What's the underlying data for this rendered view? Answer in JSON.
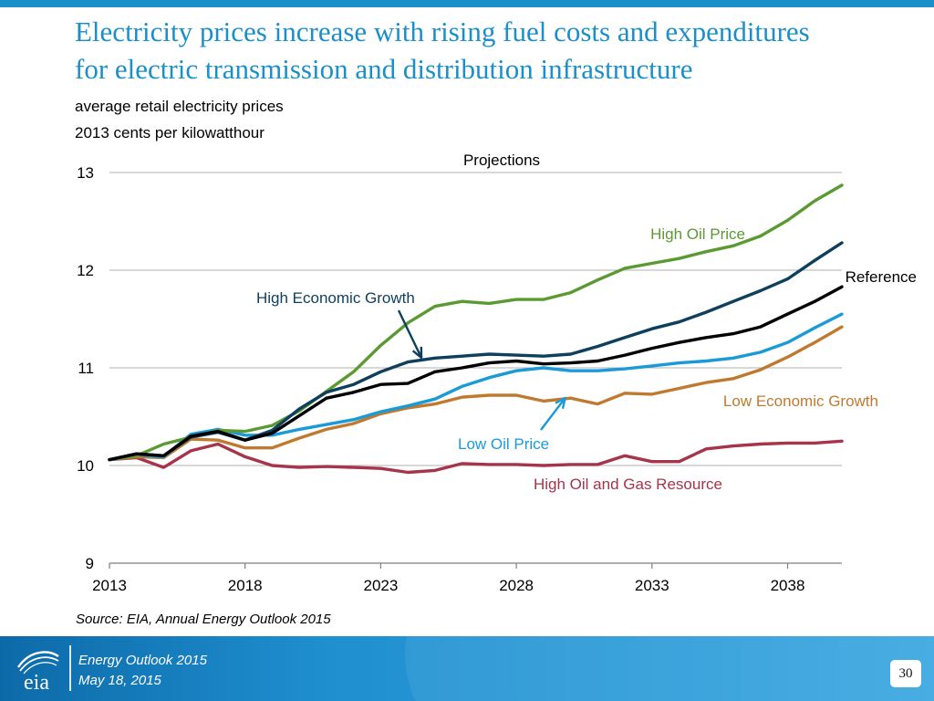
{
  "slide": {
    "title_line1": "Electricity prices increase with rising fuel costs and expenditures",
    "title_line2": "for electric transmission and distribution infrastructure",
    "subtitle_line1": "average retail electricity prices",
    "subtitle_line2": "2013 cents per kilowatthour",
    "source": "Source:  EIA, Annual Energy Outlook 2015"
  },
  "footer": {
    "logo_text": "eia",
    "line1": "Energy  Outlook 2015",
    "line2": "May 18, 2015",
    "page_number": "30"
  },
  "colors": {
    "title": "#1a8fc9",
    "high_oil_price": "#5b9a32",
    "high_economic_growth": "#0e3f5c",
    "reference": "#000000",
    "low_oil_price": "#1a9ad6",
    "low_economic_growth": "#c07a30",
    "high_oil_gas_resource": "#a6344a",
    "grid": "#b0b0b0"
  },
  "chart_data": {
    "type": "line",
    "title": "",
    "xlabel": "",
    "ylabel": "2013 cents per kilowatthour",
    "projections_label": "Projections",
    "xlim": [
      2013,
      2040
    ],
    "ylim": [
      9,
      13
    ],
    "yticks": [
      9,
      10,
      11,
      12,
      13
    ],
    "xticks": [
      2013,
      2018,
      2023,
      2028,
      2033,
      2038
    ],
    "grid": true,
    "x": [
      2013,
      2014,
      2015,
      2016,
      2017,
      2018,
      2019,
      2020,
      2021,
      2022,
      2023,
      2024,
      2025,
      2026,
      2027,
      2028,
      2029,
      2030,
      2031,
      2032,
      2033,
      2034,
      2035,
      2036,
      2037,
      2038,
      2039,
      2040
    ],
    "series": [
      {
        "id": "high_oil_price",
        "name": "High Oil Price",
        "color": "#5b9a32",
        "values": [
          10.06,
          10.1,
          10.22,
          10.29,
          10.36,
          10.35,
          10.41,
          10.56,
          10.76,
          10.96,
          11.23,
          11.46,
          11.63,
          11.68,
          11.66,
          11.7,
          11.7,
          11.77,
          11.9,
          12.02,
          12.07,
          12.12,
          12.19,
          12.25,
          12.35,
          12.51,
          12.71,
          12.87
        ]
      },
      {
        "id": "high_economic_growth",
        "name": "High Economic Growth",
        "color": "#0e3f5c",
        "values": [
          10.06,
          10.12,
          10.1,
          10.29,
          10.34,
          10.26,
          10.36,
          10.58,
          10.75,
          10.83,
          10.96,
          11.06,
          11.1,
          11.12,
          11.14,
          11.13,
          11.12,
          11.14,
          11.22,
          11.31,
          11.4,
          11.47,
          11.57,
          11.68,
          11.79,
          11.91,
          12.1,
          12.28
        ]
      },
      {
        "id": "reference",
        "name": "Reference",
        "color": "#000000",
        "values": [
          10.06,
          10.12,
          10.1,
          10.3,
          10.35,
          10.26,
          10.33,
          10.51,
          10.69,
          10.75,
          10.83,
          10.84,
          10.96,
          11.0,
          11.05,
          11.07,
          11.04,
          11.05,
          11.07,
          11.13,
          11.2,
          11.26,
          11.31,
          11.35,
          11.42,
          11.55,
          11.68,
          11.83
        ]
      },
      {
        "id": "low_oil_price",
        "name": "Low Oil Price",
        "color": "#1a9ad6",
        "values": [
          10.06,
          10.11,
          10.09,
          10.32,
          10.37,
          10.31,
          10.31,
          10.37,
          10.42,
          10.47,
          10.55,
          10.61,
          10.68,
          10.81,
          10.9,
          10.97,
          11.0,
          10.97,
          10.97,
          10.99,
          11.02,
          11.05,
          11.07,
          11.1,
          11.16,
          11.26,
          11.41,
          11.55
        ]
      },
      {
        "id": "low_economic_growth",
        "name": "Low Economic Growth",
        "color": "#c07a30",
        "values": [
          10.06,
          10.09,
          10.08,
          10.27,
          10.26,
          10.18,
          10.18,
          10.28,
          10.37,
          10.43,
          10.53,
          10.59,
          10.63,
          10.7,
          10.72,
          10.72,
          10.66,
          10.69,
          10.63,
          10.74,
          10.73,
          10.79,
          10.85,
          10.89,
          10.98,
          11.11,
          11.26,
          11.42
        ]
      },
      {
        "id": "high_oil_gas_resource",
        "name": "High Oil and Gas Resource",
        "color": "#a6344a",
        "values": [
          10.06,
          10.08,
          9.98,
          10.15,
          10.22,
          10.09,
          10.0,
          9.98,
          9.99,
          9.98,
          9.97,
          9.93,
          9.95,
          10.02,
          10.01,
          10.01,
          10.0,
          10.01,
          10.01,
          10.1,
          10.04,
          10.04,
          10.17,
          10.2,
          10.22,
          10.23,
          10.23,
          10.25
        ]
      }
    ],
    "annotations": [
      {
        "series": "high_oil_price",
        "text": "High Oil Price"
      },
      {
        "series": "high_economic_growth",
        "text": "High Economic Growth",
        "arrow_to_year": 2024.5
      },
      {
        "series": "reference",
        "text": "Reference"
      },
      {
        "series": "low_oil_price",
        "text": "Low Oil Price",
        "arrow_to_year": 2029.8
      },
      {
        "series": "low_economic_growth",
        "text": "Low Economic Growth"
      },
      {
        "series": "high_oil_gas_resource",
        "text": "High Oil and Gas Resource"
      }
    ]
  }
}
